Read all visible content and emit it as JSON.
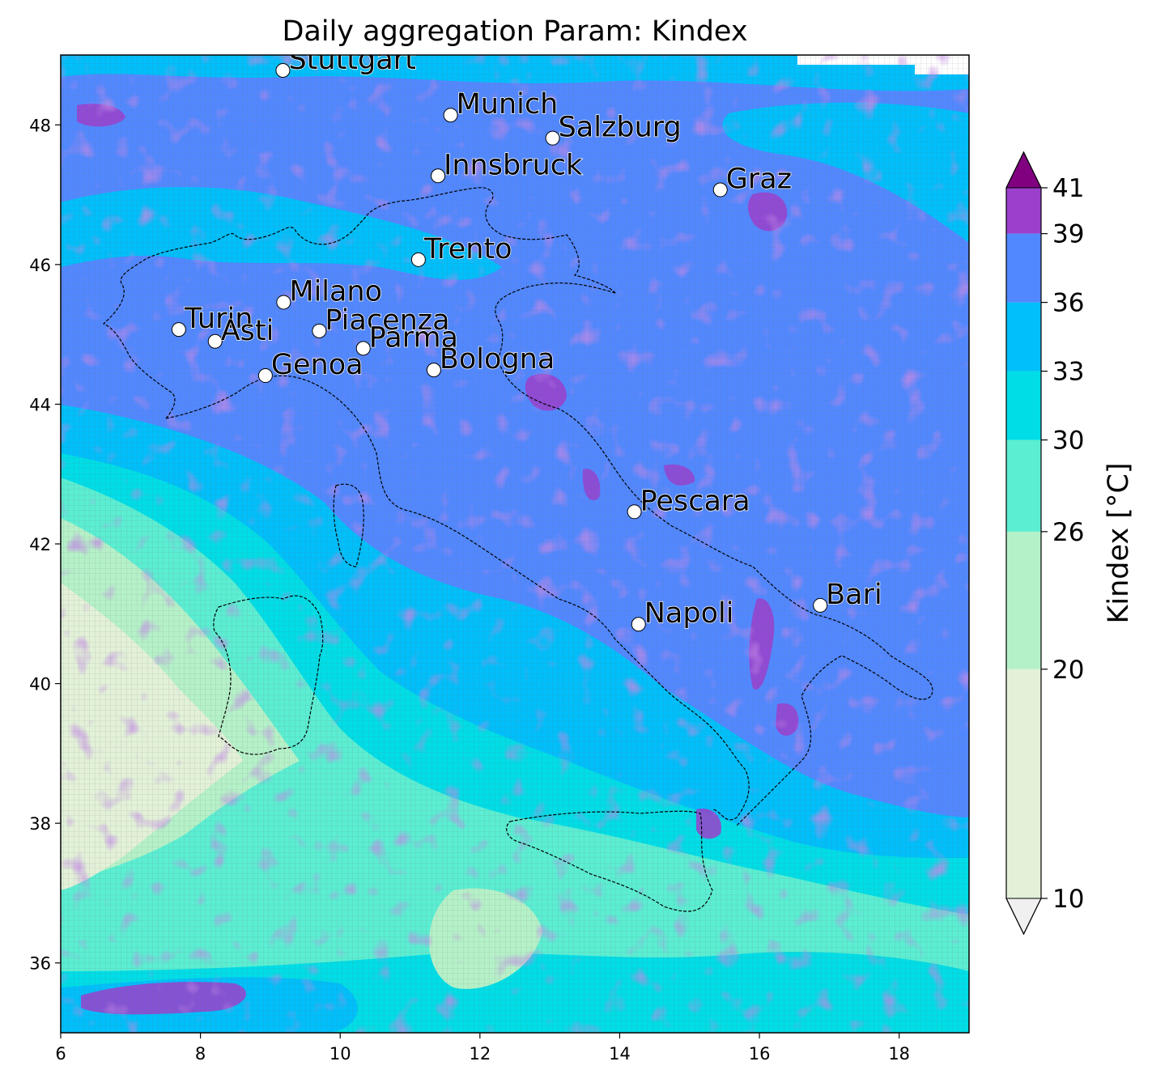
{
  "title": "Daily aggregation Param: Kindex",
  "chart_data": {
    "type": "heatmap",
    "title": "Daily aggregation Param: Kindex",
    "xlim": [
      6,
      19
    ],
    "ylim": [
      35,
      49
    ],
    "x_ticks": [
      "6",
      "8",
      "10",
      "12",
      "14",
      "16",
      "18"
    ],
    "y_ticks": [
      "36",
      "38",
      "40",
      "42",
      "44",
      "46",
      "48"
    ],
    "colorbar": {
      "label": "Kindex  [°C]",
      "levels": [
        "10",
        "20",
        "26",
        "30",
        "33",
        "36",
        "39",
        "41"
      ],
      "colors": [
        "#e2f1d8",
        "#b5f1c8",
        "#5beed2",
        "#00dde6",
        "#00bffa",
        "#5288ff",
        "#9b3fcc"
      ],
      "under_color": "#f0f0f0",
      "over_color": "#800080",
      "extend": "both"
    },
    "cities": [
      {
        "name": "Stuttgart",
        "lon": 9.18,
        "lat": 48.78
      },
      {
        "name": "Munich",
        "lon": 11.58,
        "lat": 48.14
      },
      {
        "name": "Salzburg",
        "lon": 13.04,
        "lat": 47.81
      },
      {
        "name": "Innsbruck",
        "lon": 11.4,
        "lat": 47.27
      },
      {
        "name": "Graz",
        "lon": 15.44,
        "lat": 47.07
      },
      {
        "name": "Trento",
        "lon": 11.12,
        "lat": 46.07
      },
      {
        "name": "Milano",
        "lon": 9.19,
        "lat": 45.46
      },
      {
        "name": "Turin",
        "lon": 7.69,
        "lat": 45.07
      },
      {
        "name": "Asti",
        "lon": 8.21,
        "lat": 44.9
      },
      {
        "name": "Piacenza",
        "lon": 9.7,
        "lat": 45.05
      },
      {
        "name": "Parma",
        "lon": 10.33,
        "lat": 44.8
      },
      {
        "name": "Genoa",
        "lon": 8.93,
        "lat": 44.41
      },
      {
        "name": "Bologna",
        "lon": 11.34,
        "lat": 44.49
      },
      {
        "name": "Pescara",
        "lon": 14.21,
        "lat": 42.46
      },
      {
        "name": "Bari",
        "lon": 16.87,
        "lat": 41.12
      },
      {
        "name": "Napoli",
        "lon": 14.27,
        "lat": 40.85
      }
    ]
  }
}
